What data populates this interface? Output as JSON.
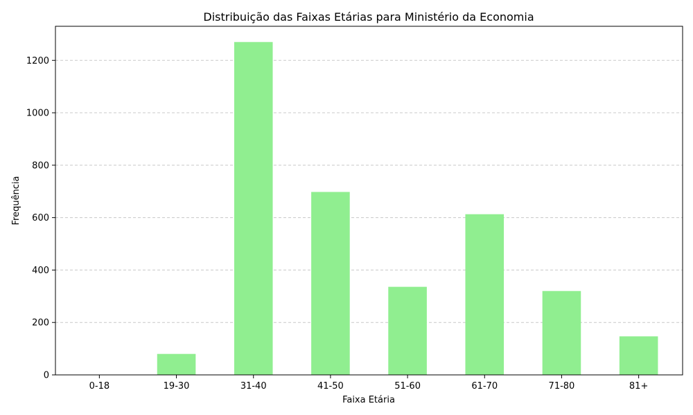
{
  "chart_data": {
    "type": "bar",
    "title": "Distribuição das Faixas Etárias para Ministério da Economia",
    "xlabel": "Faixa Etária",
    "ylabel": "Frequência",
    "categories": [
      "0-18",
      "19-30",
      "31-40",
      "41-50",
      "51-60",
      "61-70",
      "71-80",
      "81+"
    ],
    "values": [
      0,
      80,
      1270,
      698,
      336,
      613,
      320,
      147
    ],
    "ylim": [
      0,
      1330
    ],
    "yticks": [
      0,
      200,
      400,
      600,
      800,
      1000,
      1200
    ],
    "grid": "y-dashed",
    "legend": "none",
    "colors": {
      "bar": "#90ee90",
      "grid": "#c8c8c8",
      "axis": "#000000"
    }
  }
}
